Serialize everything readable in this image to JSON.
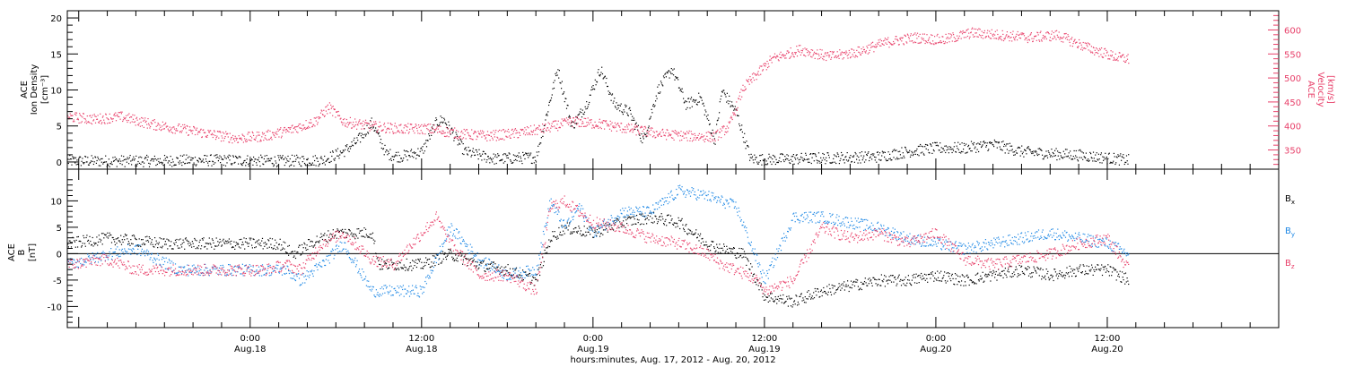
{
  "colors": {
    "density": "#000000",
    "velocity": "#e8406a",
    "bx": "#000000",
    "by": "#1e88e5",
    "bz": "#e8406a",
    "axis": "#000000"
  },
  "chart_data": [
    {
      "type": "scatter",
      "panel": "top",
      "left_label_lines": [
        "ACE",
        "Ion Density",
        "[cm⁻³]"
      ],
      "right_label_lines": [
        "ACE",
        "Velocity",
        "[km/s]"
      ],
      "ylim": [
        -1,
        21
      ],
      "y_ticks": [
        0,
        5,
        10,
        15,
        20
      ],
      "y2lim": [
        310,
        640
      ],
      "y2_ticks": [
        350,
        400,
        450,
        500,
        550,
        600
      ],
      "series": [
        {
          "name": "",
          "axis": "left",
          "x": [
            -12.8,
            -10,
            -7,
            -4,
            -1,
            2,
            5,
            6.5,
            7.5,
            8.5,
            9.5,
            10.5,
            12,
            13,
            13.5,
            15,
            17,
            20,
            21.5,
            22.5,
            23.5,
            24.5,
            25.5,
            26.5,
            27.5,
            28.5,
            29.5,
            30.5,
            31.5,
            32.5,
            33,
            34,
            35,
            36,
            38,
            40,
            44,
            46,
            48,
            50,
            52,
            54,
            56,
            58,
            60,
            61.5
          ],
          "y": [
            0.2,
            0.2,
            0.2,
            0.3,
            0.3,
            0.2,
            0.3,
            1.5,
            3,
            5.5,
            1.2,
            0.8,
            1.5,
            5.5,
            6,
            1.5,
            0.5,
            0.7,
            13,
            5,
            8,
            13,
            8,
            7,
            3,
            10,
            13,
            8,
            9,
            3,
            10,
            7,
            0.5,
            0.4,
            0.5,
            0.6,
            0.8,
            1.5,
            2,
            2,
            2.5,
            1.5,
            1.2,
            1,
            0.6,
            0.3
          ]
        },
        {
          "name": "",
          "axis": "right",
          "x": [
            -12.8,
            -11,
            -9,
            -7,
            -5,
            -3,
            -1,
            1,
            2.5,
            4.5,
            5.5,
            6.5,
            8.5,
            10.5,
            12.5,
            14.5,
            16.5,
            18.5,
            20.5,
            22.5,
            24.5,
            26.5,
            28.5,
            30.5,
            32.5,
            33.5,
            34.5,
            35.5,
            36.5,
            38.5,
            40.5,
            42.5,
            44.5,
            46.5,
            48.5,
            50.5,
            52.5,
            54.5,
            56.5,
            58.5,
            60.5,
            61.5
          ],
          "y": [
            420,
            415,
            420,
            405,
            395,
            385,
            375,
            380,
            390,
            410,
            440,
            410,
            400,
            395,
            395,
            385,
            380,
            385,
            395,
            410,
            405,
            395,
            385,
            380,
            378,
            400,
            480,
            510,
            540,
            560,
            545,
            555,
            575,
            585,
            580,
            595,
            590,
            585,
            590,
            565,
            545,
            540
          ]
        }
      ]
    },
    {
      "type": "line",
      "panel": "bottom",
      "left_label_lines": [
        "ACE",
        "B",
        "[nT]"
      ],
      "ylim": [
        -14,
        16
      ],
      "y_ticks": [
        -10,
        -5,
        0,
        5,
        10
      ],
      "zero_line": true,
      "legend_position": "right",
      "series": [
        {
          "name": "Bx",
          "x": [
            -12.8,
            -10,
            -6,
            -2,
            2,
            3,
            4.5,
            6,
            8.5,
            9,
            12,
            14,
            16,
            18,
            20,
            21,
            22,
            24,
            26,
            28,
            30,
            32,
            33,
            34.5,
            36,
            38,
            40,
            42,
            44,
            46,
            48,
            50,
            52,
            54,
            56,
            58,
            60,
            61.5
          ],
          "y": [
            2,
            3,
            2,
            2,
            2,
            0,
            2.5,
            4,
            4,
            -2,
            -2,
            0,
            -2,
            -3,
            -5,
            3,
            5,
            4,
            6,
            7,
            6,
            2,
            1,
            0,
            -8,
            -9,
            -7,
            -6,
            -5,
            -5,
            -4,
            -5,
            -4,
            -3,
            -4,
            -3,
            -3,
            -5
          ]
        },
        {
          "name": "By",
          "x": [
            -12.8,
            -10,
            -8,
            -5,
            -2,
            1,
            2.5,
            3.5,
            5,
            6.5,
            8.5,
            10,
            12,
            14,
            16,
            18,
            20,
            21,
            22,
            23,
            24,
            26,
            28,
            30,
            32,
            34,
            36,
            38,
            40,
            42,
            44,
            46,
            48,
            50,
            52,
            54,
            56,
            58,
            60,
            61.5
          ],
          "y": [
            -2,
            0,
            1,
            -3,
            -3,
            -3,
            -3,
            -5,
            -2,
            2,
            -7,
            -7,
            -7,
            5,
            -1,
            -4,
            -3,
            10,
            5,
            9,
            4,
            8,
            8,
            12,
            11,
            9,
            -5,
            7,
            7,
            6,
            5,
            3,
            2,
            1,
            2,
            3,
            4,
            3,
            2,
            0
          ]
        },
        {
          "name": "Bz",
          "x": [
            -12.8,
            -10,
            -8,
            -5,
            -2,
            1,
            2.5,
            3.5,
            5,
            6.5,
            8.5,
            10,
            12,
            13,
            14,
            16,
            18,
            20,
            21,
            22,
            24,
            26,
            28,
            30,
            32,
            33,
            34,
            35.5,
            36,
            38,
            40,
            42,
            44,
            46,
            48,
            50,
            52,
            54,
            56,
            58,
            60,
            61.5
          ],
          "y": [
            -2,
            -1,
            -3,
            -3,
            -3,
            -3,
            -2,
            -3,
            2,
            4,
            -1,
            -2,
            4,
            7,
            2,
            -4,
            -4,
            -7,
            9,
            10,
            6,
            5,
            3,
            2,
            0,
            -2,
            -3,
            -5,
            -7,
            -5,
            5,
            3,
            4,
            2,
            4,
            -1,
            -2,
            -1,
            0,
            2,
            3,
            -3
          ]
        }
      ]
    }
  ],
  "x_axis": {
    "xlim": [
      -12.8,
      72
    ],
    "ticks": [
      {
        "time": "0:00",
        "date": "Aug.18",
        "x": 0
      },
      {
        "time": "12:00",
        "date": "Aug.18",
        "x": 12
      },
      {
        "time": "0:00",
        "date": "Aug.19",
        "x": 24
      },
      {
        "time": "12:00",
        "date": "Aug.19",
        "x": 36
      },
      {
        "time": "0:00",
        "date": "Aug.20",
        "x": 48
      },
      {
        "time": "12:00",
        "date": "Aug.20",
        "x": 60
      }
    ],
    "title": "hours:minutes, Aug. 17, 2012 - Aug. 20, 2012"
  },
  "legend": [
    {
      "base": "B",
      "sub": "x",
      "color_key": "bx"
    },
    {
      "base": "B",
      "sub": "y",
      "color_key": "by"
    },
    {
      "base": "B",
      "sub": "z",
      "color_key": "bz"
    }
  ]
}
